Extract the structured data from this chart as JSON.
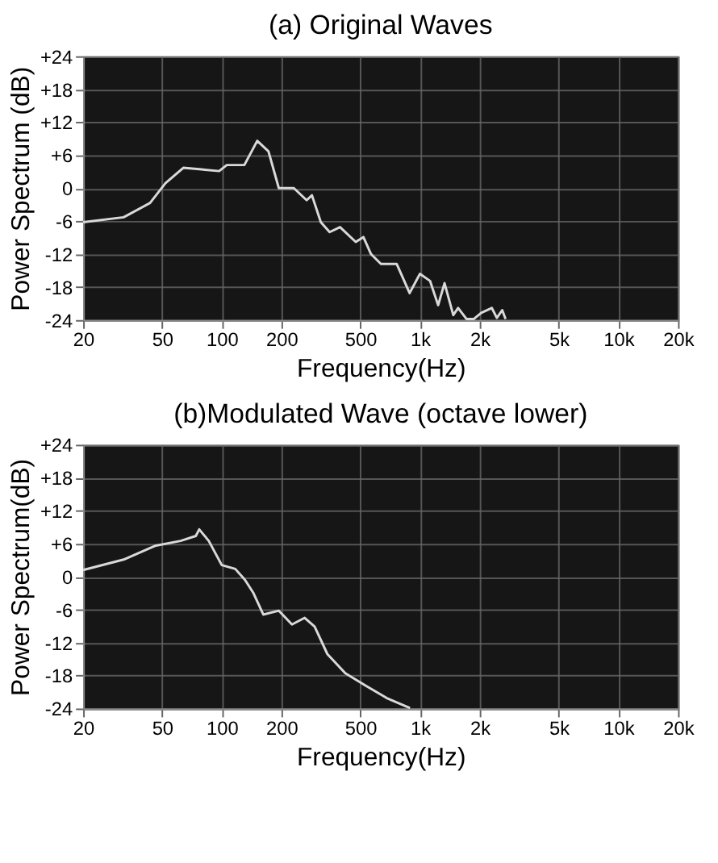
{
  "chart_data": [
    {
      "type": "line",
      "title": "(a) Original Waves",
      "xlabel": "Frequency(Hz)",
      "ylabel": "Power Spectrum (dB)",
      "log": "x",
      "grid": true,
      "marker": "none",
      "line_style": "solid",
      "xlim": [
        20,
        20000
      ],
      "ylim": [
        -24,
        24
      ],
      "xticks": [
        20,
        50,
        100,
        200,
        500,
        {
          "value": 1000,
          "label": "1k"
        },
        {
          "value": 2000,
          "label": "2k"
        },
        {
          "value": 5000,
          "label": "5k"
        },
        {
          "value": 10000,
          "label": "10k"
        },
        {
          "value": 20000,
          "label": "20k"
        }
      ],
      "yticks": [
        {
          "value": 24,
          "label": "+24"
        },
        {
          "value": 18,
          "label": "+18"
        },
        {
          "value": 12,
          "label": "+12"
        },
        {
          "value": 6,
          "label": "+6"
        },
        0,
        -6,
        -12,
        -18,
        -24
      ],
      "series": [
        {
          "color": "#d9d9d9",
          "x": [
            20,
            32,
            43.5,
            52,
            64,
            79,
            97,
            106,
            130,
            151,
            172,
            194,
            231,
            268,
            285,
            316,
            350,
            395,
            474,
            518,
            566,
            635,
            763,
            886,
            999,
            1124,
            1234,
            1329,
            1471,
            1556,
            1714,
            1870,
            2036,
            2300,
            2440,
            2597,
            2700
          ],
          "values": [
            -6.2,
            -5.3,
            -2.7,
            0.9,
            3.7,
            3.4,
            3.1,
            4.2,
            4.2,
            8.6,
            6.7,
            0,
            0,
            -2.2,
            -1.3,
            -6.2,
            -8,
            -7.1,
            -9.8,
            -8.9,
            -12,
            -13.8,
            -13.8,
            -19.1,
            -15.6,
            -16.9,
            -21.3,
            -17.3,
            -23.1,
            -21.8,
            -23.8,
            -23.8,
            -22.7,
            -21.8,
            -23.6,
            -22.2,
            -23.8
          ]
        }
      ]
    },
    {
      "type": "line",
      "title": "(b)Modulated Wave (octave lower)",
      "xlabel": "Frequency(Hz)",
      "ylabel": "Power Spectrum(dB)",
      "log": "x",
      "grid": true,
      "marker": "none",
      "line_style": "solid",
      "xlim": [
        20,
        20000
      ],
      "ylim": [
        -24,
        24
      ],
      "xticks": [
        20,
        50,
        100,
        200,
        500,
        {
          "value": 1000,
          "label": "1k"
        },
        {
          "value": 2000,
          "label": "2k"
        },
        {
          "value": 5000,
          "label": "5k"
        },
        {
          "value": 10000,
          "label": "10k"
        },
        {
          "value": 20000,
          "label": "20k"
        }
      ],
      "yticks": [
        {
          "value": 24,
          "label": "+24"
        },
        {
          "value": 18,
          "label": "+18"
        },
        {
          "value": 12,
          "label": "+12"
        },
        {
          "value": 6,
          "label": "+6"
        },
        0,
        -6,
        -12,
        -18,
        -24
      ],
      "series": [
        {
          "color": "#d9d9d9",
          "x": [
            20,
            32,
            46,
            62,
            74,
            77,
            86,
            100,
            117,
            131,
            144,
            162,
            194,
            226,
            262,
            294,
            341,
            420,
            535,
            680,
            890
          ],
          "values": [
            1.2,
            3.1,
            5.6,
            6.5,
            7.4,
            8.6,
            6.5,
            2.1,
            1.4,
            -0.6,
            -2.9,
            -6.9,
            -6.2,
            -8.7,
            -7.5,
            -9.1,
            -14.1,
            -17.6,
            -19.9,
            -22.1,
            -23.9
          ]
        }
      ]
    }
  ]
}
